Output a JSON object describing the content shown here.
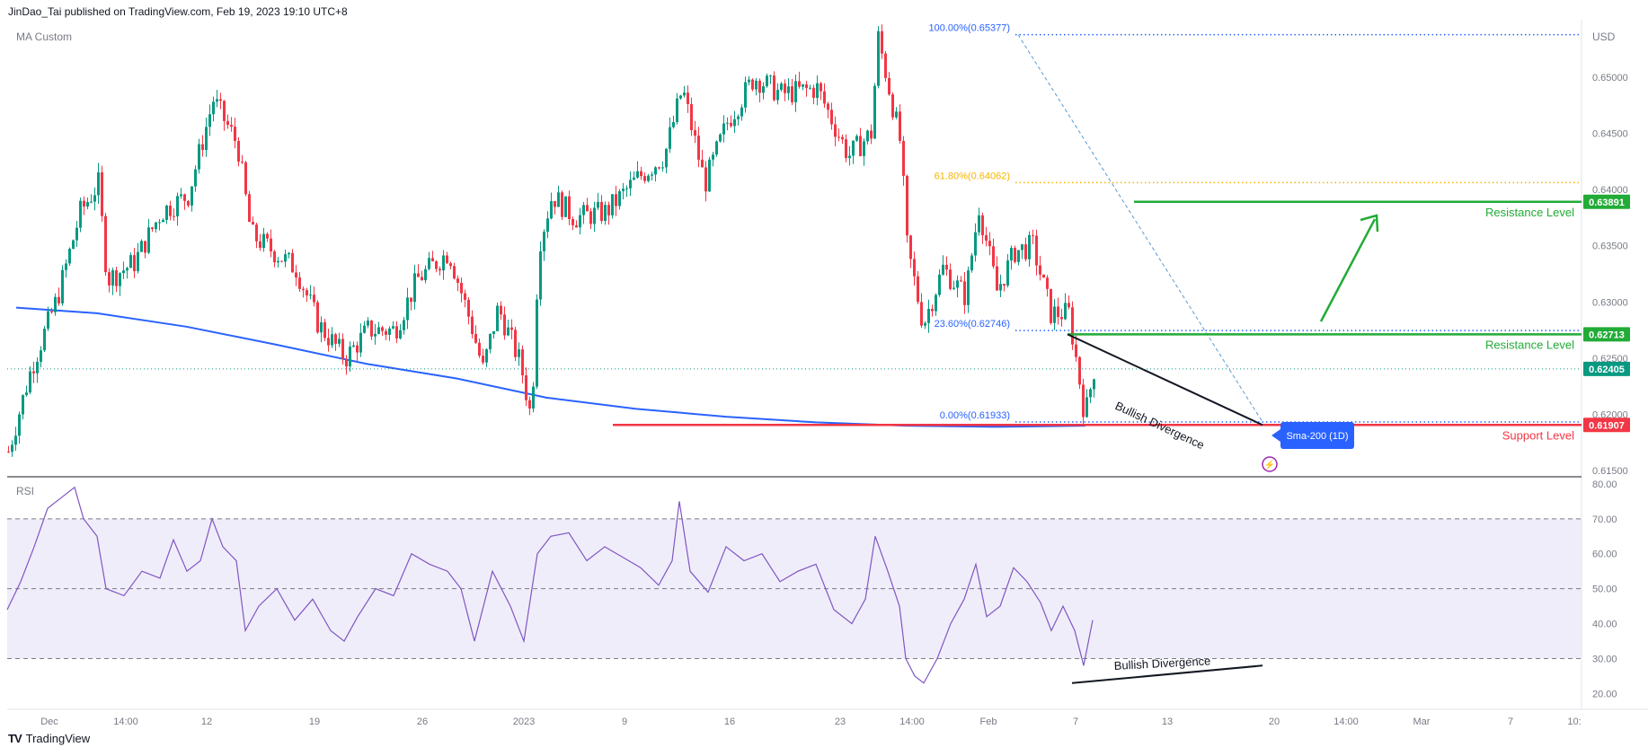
{
  "header": {
    "published_by": "JinDao_Tai published on TradingView.com, Feb 19, 2023 19:10 UTC+8"
  },
  "footer": {
    "brand": "TradingView",
    "logo_mark": "TV"
  },
  "chart_data": [
    {
      "type": "candlestick",
      "indicator_label": "MA Custom",
      "currency": "USD",
      "x_ticks": [
        "Dec",
        "14:00",
        "12",
        "19",
        "26",
        "2023",
        "9",
        "16",
        "23",
        "14:00",
        "Feb",
        "7",
        "13",
        "20",
        "14:00",
        "Mar",
        "7",
        "10:"
      ],
      "y_ticks": [
        0.615,
        0.62,
        0.625,
        0.63,
        0.635,
        0.64,
        0.645,
        0.65
      ],
      "y_tick_labels": [
        "0.61500",
        "0.62000",
        "0.62500",
        "0.63000",
        "0.63500",
        "0.64000",
        "0.64500",
        "0.65000"
      ],
      "ylim": [
        0.6147,
        0.6551
      ],
      "price_series_approx": [
        [
          0,
          0.6167
        ],
        [
          25,
          0.624
        ],
        [
          55,
          0.6305
        ],
        [
          80,
          0.638
        ],
        [
          100,
          0.6405
        ],
        [
          110,
          0.632
        ],
        [
          140,
          0.6335
        ],
        [
          170,
          0.638
        ],
        [
          200,
          0.6395
        ],
        [
          228,
          0.648
        ],
        [
          255,
          0.644
        ],
        [
          270,
          0.636
        ],
        [
          295,
          0.6345
        ],
        [
          320,
          0.633
        ],
        [
          345,
          0.628
        ],
        [
          375,
          0.625
        ],
        [
          400,
          0.6275
        ],
        [
          430,
          0.6275
        ],
        [
          455,
          0.632
        ],
        [
          490,
          0.6345
        ],
        [
          515,
          0.628
        ],
        [
          528,
          0.624
        ],
        [
          545,
          0.6295
        ],
        [
          570,
          0.6245
        ],
        [
          582,
          0.6195
        ],
        [
          590,
          0.635
        ],
        [
          605,
          0.6395
        ],
        [
          630,
          0.6375
        ],
        [
          665,
          0.638
        ],
        [
          700,
          0.641
        ],
        [
          730,
          0.643
        ],
        [
          750,
          0.649
        ],
        [
          775,
          0.6405
        ],
        [
          800,
          0.646
        ],
        [
          830,
          0.65
        ],
        [
          860,
          0.6485
        ],
        [
          900,
          0.649
        ],
        [
          935,
          0.643
        ],
        [
          960,
          0.645
        ],
        [
          968,
          0.6535
        ],
        [
          980,
          0.649
        ],
        [
          993,
          0.644
        ],
        [
          1000,
          0.635
        ],
        [
          1018,
          0.628
        ],
        [
          1040,
          0.633
        ],
        [
          1065,
          0.6305
        ],
        [
          1080,
          0.6385
        ],
        [
          1100,
          0.631
        ],
        [
          1120,
          0.6345
        ],
        [
          1140,
          0.635
        ],
        [
          1160,
          0.629
        ],
        [
          1180,
          0.629
        ],
        [
          1190,
          0.624
        ],
        [
          1198,
          0.6198
        ],
        [
          1208,
          0.624
        ]
      ],
      "sma200_approx": [
        [
          10,
          0.6295
        ],
        [
          100,
          0.629
        ],
        [
          200,
          0.6278
        ],
        [
          300,
          0.6262
        ],
        [
          400,
          0.6245
        ],
        [
          500,
          0.6232
        ],
        [
          600,
          0.6215
        ],
        [
          700,
          0.6205
        ],
        [
          800,
          0.6198
        ],
        [
          900,
          0.6193
        ],
        [
          1000,
          0.619
        ],
        [
          1100,
          0.6189
        ],
        [
          1200,
          0.619
        ]
      ],
      "fibonacci": [
        {
          "label": "100.00%(0.65377)",
          "level": 0.65377,
          "color": "#2962ff"
        },
        {
          "label": "61.80%(0.64062)",
          "level": 0.64062,
          "color": "#f7b500"
        },
        {
          "label": "23.60%(0.62746)",
          "level": 0.62746,
          "color": "#2962ff"
        },
        {
          "label": "0.00%(0.61933)",
          "level": 0.61933,
          "color": "#2962ff"
        }
      ],
      "levels": [
        {
          "name": "Resistance Level",
          "value": 0.63891,
          "tag": "0.63891",
          "color": "#22ab37"
        },
        {
          "name": "Resistance Level",
          "value": 0.62713,
          "tag": "0.62713",
          "color": "#22ab37"
        },
        {
          "name": "Support Level",
          "value": 0.61907,
          "tag": "0.61907",
          "color": "#f23645"
        }
      ],
      "current_price": {
        "value": 0.62405,
        "tag": "0.62405",
        "color": "#089981"
      },
      "annotations": {
        "divergence": "Bullish Divergence",
        "sma_tag": "Sma-200 (1D)"
      },
      "colors": {
        "up": "#089981",
        "down": "#f23645",
        "sma": "#2962ff",
        "fib_trend": "#5b9bd5"
      }
    },
    {
      "type": "line",
      "indicator_label": "RSI",
      "y_ticks": [
        20,
        30,
        40,
        50,
        60,
        70,
        80
      ],
      "y_tick_labels": [
        "20.00",
        "30.00",
        "40.00",
        "50.00",
        "60.00",
        "70.00",
        "80.00"
      ],
      "ylim": [
        16,
        81
      ],
      "band": [
        30,
        70
      ],
      "midline": 50,
      "rsi_series_approx": [
        [
          0,
          44
        ],
        [
          15,
          52
        ],
        [
          30,
          62
        ],
        [
          45,
          73
        ],
        [
          60,
          76
        ],
        [
          75,
          79
        ],
        [
          85,
          70
        ],
        [
          100,
          65
        ],
        [
          110,
          50
        ],
        [
          130,
          48
        ],
        [
          150,
          55
        ],
        [
          170,
          53
        ],
        [
          185,
          64
        ],
        [
          200,
          55
        ],
        [
          215,
          58
        ],
        [
          228,
          70
        ],
        [
          240,
          62
        ],
        [
          255,
          58
        ],
        [
          265,
          38
        ],
        [
          280,
          45
        ],
        [
          300,
          50
        ],
        [
          320,
          41
        ],
        [
          340,
          47
        ],
        [
          360,
          38
        ],
        [
          375,
          35
        ],
        [
          390,
          42
        ],
        [
          410,
          50
        ],
        [
          430,
          48
        ],
        [
          450,
          60
        ],
        [
          470,
          57
        ],
        [
          490,
          55
        ],
        [
          505,
          50
        ],
        [
          520,
          35
        ],
        [
          540,
          55
        ],
        [
          560,
          45
        ],
        [
          575,
          35
        ],
        [
          590,
          60
        ],
        [
          605,
          65
        ],
        [
          625,
          66
        ],
        [
          645,
          58
        ],
        [
          665,
          62
        ],
        [
          685,
          59
        ],
        [
          705,
          56
        ],
        [
          725,
          51
        ],
        [
          740,
          58
        ],
        [
          748,
          75
        ],
        [
          760,
          55
        ],
        [
          780,
          49
        ],
        [
          800,
          62
        ],
        [
          820,
          58
        ],
        [
          840,
          60
        ],
        [
          860,
          52
        ],
        [
          880,
          55
        ],
        [
          900,
          57
        ],
        [
          920,
          44
        ],
        [
          940,
          40
        ],
        [
          955,
          47
        ],
        [
          966,
          65
        ],
        [
          980,
          55
        ],
        [
          993,
          45
        ],
        [
          1000,
          30
        ],
        [
          1010,
          25
        ],
        [
          1020,
          23
        ],
        [
          1035,
          30
        ],
        [
          1050,
          40
        ],
        [
          1065,
          47
        ],
        [
          1078,
          57
        ],
        [
          1090,
          42
        ],
        [
          1105,
          45
        ],
        [
          1120,
          56
        ],
        [
          1135,
          52
        ],
        [
          1150,
          46
        ],
        [
          1162,
          38
        ],
        [
          1175,
          45
        ],
        [
          1188,
          38
        ],
        [
          1198,
          28
        ],
        [
          1208,
          41
        ]
      ]
    }
  ]
}
